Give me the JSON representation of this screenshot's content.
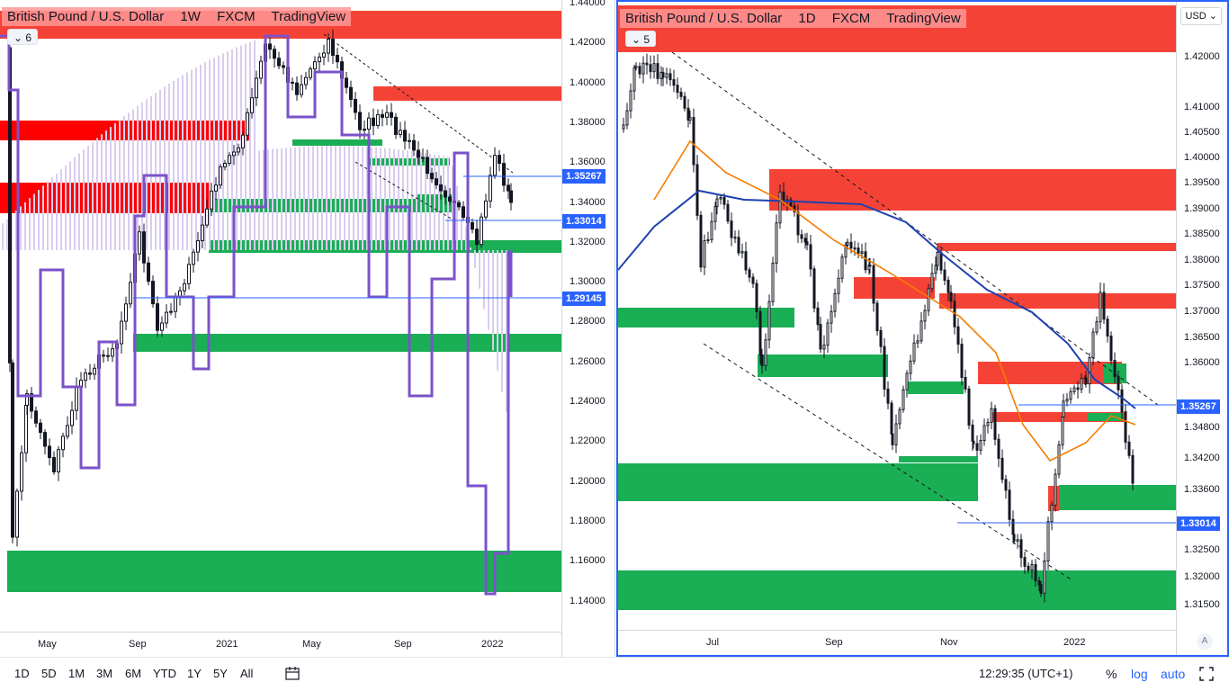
{
  "left_chart": {
    "legend": {
      "symbol": "British Pound / U.S. Dollar",
      "interval": "1W",
      "exchange": "FXCM",
      "brand": "TradingView"
    },
    "collapse_count": "6",
    "price_ticks": [
      "1.44000",
      "1.42000",
      "1.40000",
      "1.38000",
      "1.36000",
      "1.34000",
      "1.32000",
      "1.30000",
      "1.28000",
      "1.26000",
      "1.24000",
      "1.22000",
      "1.20000",
      "1.18000",
      "1.16000",
      "1.14000"
    ],
    "price_tags": [
      "1.35267",
      "1.33014",
      "1.29145"
    ],
    "time_ticks": [
      "May",
      "Sep",
      "2021",
      "May",
      "Sep",
      "2022"
    ]
  },
  "right_chart": {
    "legend": {
      "symbol": "British Pound / U.S. Dollar",
      "interval": "1D",
      "exchange": "FXCM",
      "brand": "TradingView"
    },
    "collapse_count": "5",
    "currency": "USD",
    "auto_label": "A",
    "price_ticks": [
      "1.42000",
      "1.41000",
      "1.40500",
      "1.40000",
      "1.39500",
      "1.39000",
      "1.38500",
      "1.38000",
      "1.37500",
      "1.37000",
      "1.36500",
      "1.36000",
      "1.34800",
      "1.34200",
      "1.33600",
      "1.32500",
      "1.32000",
      "1.31500"
    ],
    "price_tags": [
      "1.35267",
      "1.33014"
    ],
    "time_ticks": [
      "Jul",
      "Sep",
      "Nov",
      "2022"
    ]
  },
  "toolbar": {
    "ranges": [
      "1D",
      "5D",
      "1M",
      "3M",
      "6M",
      "YTD",
      "1Y",
      "5Y",
      "All"
    ],
    "clock": "12:29:35 (UTC+1)",
    "percent": "%",
    "log": "log",
    "auto": "auto"
  },
  "colors": {
    "supply_zone": "#f44336",
    "supply_zone_strong": "#ff0000",
    "demand_zone": "#1aae55",
    "price_line": "#2962ff",
    "candle": "#131722",
    "purple_line": "#7b52c9",
    "ma_orange": "#f57c00",
    "ma_blue": "#1e40af"
  }
}
